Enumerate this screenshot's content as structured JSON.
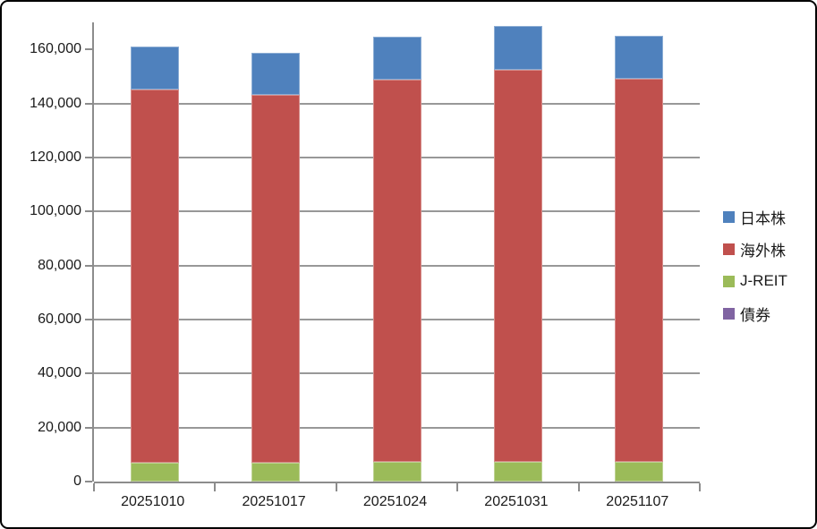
{
  "chart_data": {
    "type": "bar",
    "stacked": true,
    "title": "",
    "xlabel": "",
    "ylabel": "",
    "categories": [
      "20251010",
      "20251017",
      "20251024",
      "20251031",
      "20251107"
    ],
    "series": [
      {
        "name": "日本株",
        "color": "#4F81BD",
        "values": [
          15800,
          15400,
          16000,
          16400,
          16200
        ]
      },
      {
        "name": "海外株",
        "color": "#C0504D",
        "values": [
          138200,
          136300,
          141400,
          145000,
          141600
        ]
      },
      {
        "name": "J-REIT",
        "color": "#9BBB59",
        "values": [
          7000,
          7000,
          7300,
          7400,
          7400
        ]
      },
      {
        "name": "債券",
        "color": "#8064A2",
        "values": [
          0,
          0,
          0,
          0,
          0
        ]
      }
    ],
    "stack_order_bottom_to_top": [
      "債券",
      "J-REIT",
      "海外株",
      "日本株"
    ],
    "stacked_totals": [
      161000,
      158700,
      164700,
      168800,
      165200
    ],
    "ylim": [
      0,
      170000
    ],
    "ytick_step": 20000,
    "ytick_labels": [
      "0",
      "20,000",
      "40,000",
      "60,000",
      "80,000",
      "100,000",
      "120,000",
      "140,000",
      "160,000"
    ],
    "grid": true,
    "legend_position": "right",
    "colors": {
      "gridline": "#989898",
      "axis": "#8c8c8c",
      "text": "#1a1a1a",
      "frame_border": "#000000",
      "background": "#ffffff"
    }
  }
}
